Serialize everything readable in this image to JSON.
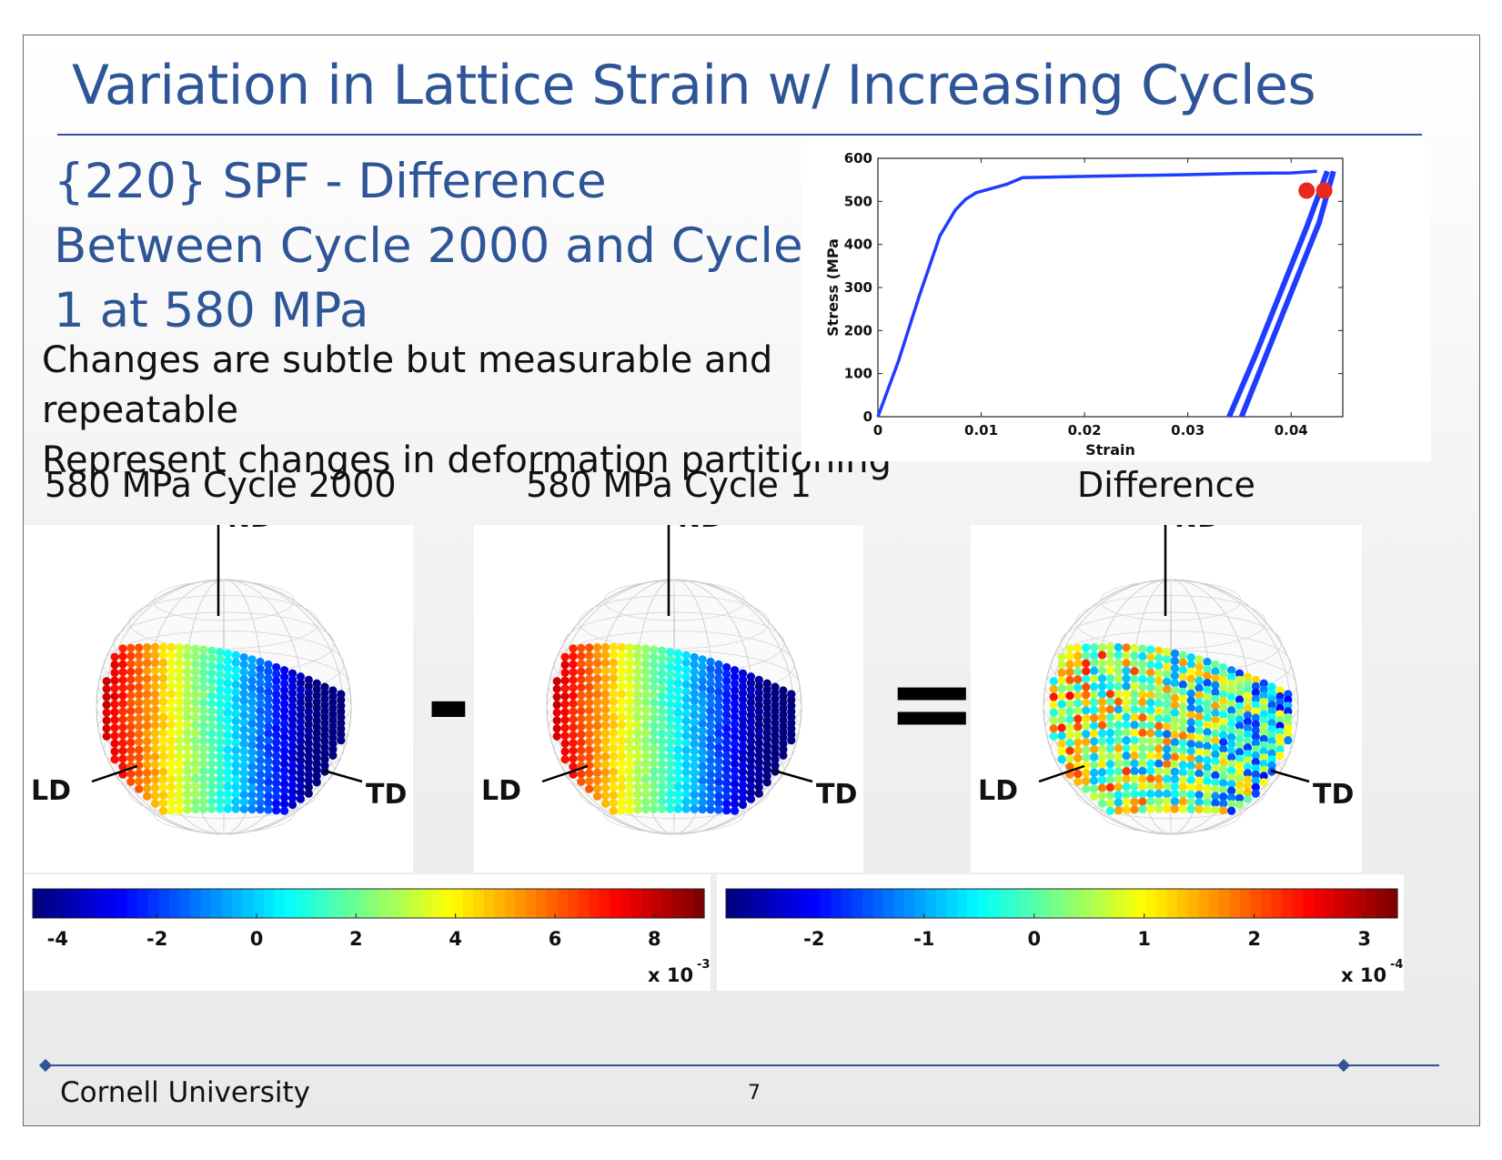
{
  "slide": {
    "title": "Variation in Lattice Strain w/ Increasing Cycles",
    "subtitle_lines": [
      "{220} SPF - Difference",
      "Between Cycle 2000 and Cycle",
      "1 at 580 MPa"
    ],
    "body_lines": [
      "Changes are subtle but measurable and",
      "repeatable",
      "Represent changes in deformation partitioning"
    ],
    "panel_labels": {
      "left": "580 MPa Cycle 2000",
      "middle": "580 MPa Cycle 1",
      "right": "Difference"
    },
    "operators": {
      "minus": "-",
      "equals": "="
    },
    "footer": {
      "org": "Cornell University",
      "page": "7"
    }
  },
  "spheres": {
    "axis_labels": {
      "nd": "ND",
      "ld": "LD",
      "td": "TD"
    }
  },
  "colorbars": [
    {
      "ticks": [
        "-4",
        "-2",
        "0",
        "2",
        "4",
        "6",
        "8"
      ],
      "tick_values": [
        -4,
        -2,
        0,
        2,
        4,
        6,
        8
      ],
      "range": [
        -4.5,
        9
      ],
      "multiplier_base": "x 10",
      "multiplier_exp": "-3"
    },
    {
      "ticks": [
        "-2",
        "-1",
        "0",
        "1",
        "2",
        "3"
      ],
      "tick_values": [
        -2,
        -1,
        0,
        1,
        2,
        3
      ],
      "range": [
        -2.8,
        3.3
      ],
      "multiplier_base": "x 10",
      "multiplier_exp": "-4"
    }
  ],
  "chart_data": {
    "type": "line",
    "title": "",
    "xlabel": "Strain",
    "ylabel": "Stress (MPa",
    "xlim": [
      0,
      0.045
    ],
    "ylim": [
      0,
      600
    ],
    "x_ticks": [
      "0",
      "0.01",
      "0.02",
      "0.03",
      "0.04"
    ],
    "x_tick_values": [
      0,
      0.01,
      0.02,
      0.03,
      0.04
    ],
    "y_ticks": [
      "0",
      "100",
      "200",
      "300",
      "400",
      "500",
      "600"
    ],
    "y_tick_values": [
      0,
      100,
      200,
      300,
      400,
      500,
      600
    ],
    "grid": false,
    "series": [
      {
        "x": [
          0,
          0.002,
          0.004,
          0.006,
          0.0075,
          0.0085,
          0.0095,
          0.011,
          0.0125,
          0.014,
          0.02,
          0.025,
          0.03,
          0.035,
          0.04,
          0.0425
        ],
        "y": [
          0,
          130,
          280,
          420,
          480,
          505,
          520,
          530,
          540,
          555,
          558,
          560,
          562,
          565,
          566,
          570
        ]
      },
      {
        "x": [
          0.034,
          0.0365,
          0.039,
          0.0415,
          0.0435
        ],
        "y": [
          0,
          140,
          290,
          440,
          570
        ]
      },
      {
        "x": [
          0.0352,
          0.0377,
          0.0402,
          0.0427,
          0.0441
        ],
        "y": [
          0,
          150,
          300,
          450,
          570
        ]
      }
    ],
    "markers": [
      {
        "x": 0.0415,
        "y": 525
      },
      {
        "x": 0.0432,
        "y": 525
      }
    ],
    "line_color": "#1f3dff",
    "marker_color": "#e8281e"
  }
}
